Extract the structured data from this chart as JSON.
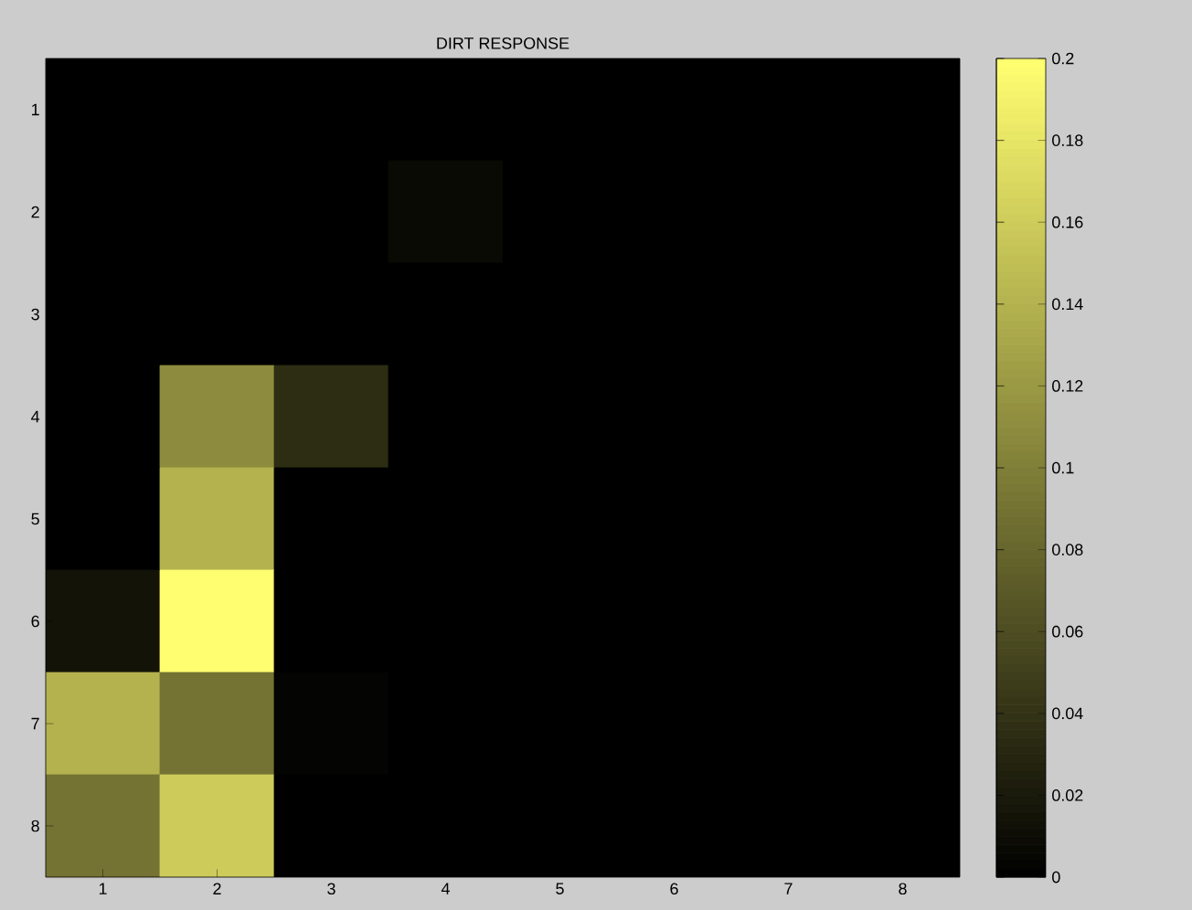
{
  "chart_data": {
    "type": "heatmap",
    "title": "DIRT RESPONSE",
    "categories": [
      "1",
      "2",
      "3",
      "4",
      "5",
      "6",
      "7",
      "8"
    ],
    "y_categories": [
      "1",
      "2",
      "3",
      "4",
      "5",
      "6",
      "7",
      "8"
    ],
    "cells": [
      [
        0,
        0,
        0,
        0,
        0,
        0,
        0,
        0
      ],
      [
        0,
        0,
        0,
        0.008,
        0,
        0,
        0,
        0
      ],
      [
        0,
        0,
        0,
        0,
        0,
        0,
        0,
        0
      ],
      [
        0,
        0.11,
        0.035,
        0,
        0,
        0,
        0,
        0
      ],
      [
        0,
        0.14,
        0,
        0,
        0,
        0,
        0,
        0
      ],
      [
        0.015,
        0.2,
        0,
        0,
        0,
        0,
        0,
        0
      ],
      [
        0.14,
        0.09,
        0.003,
        0,
        0,
        0,
        0,
        0
      ],
      [
        0.09,
        0.16,
        0,
        0,
        0,
        0,
        0,
        0
      ]
    ],
    "clim": [
      0,
      0.2
    ],
    "cticks": [
      0,
      0.02,
      0.04,
      0.06,
      0.08,
      0.1,
      0.12,
      0.14,
      0.16,
      0.18,
      0.2
    ]
  }
}
